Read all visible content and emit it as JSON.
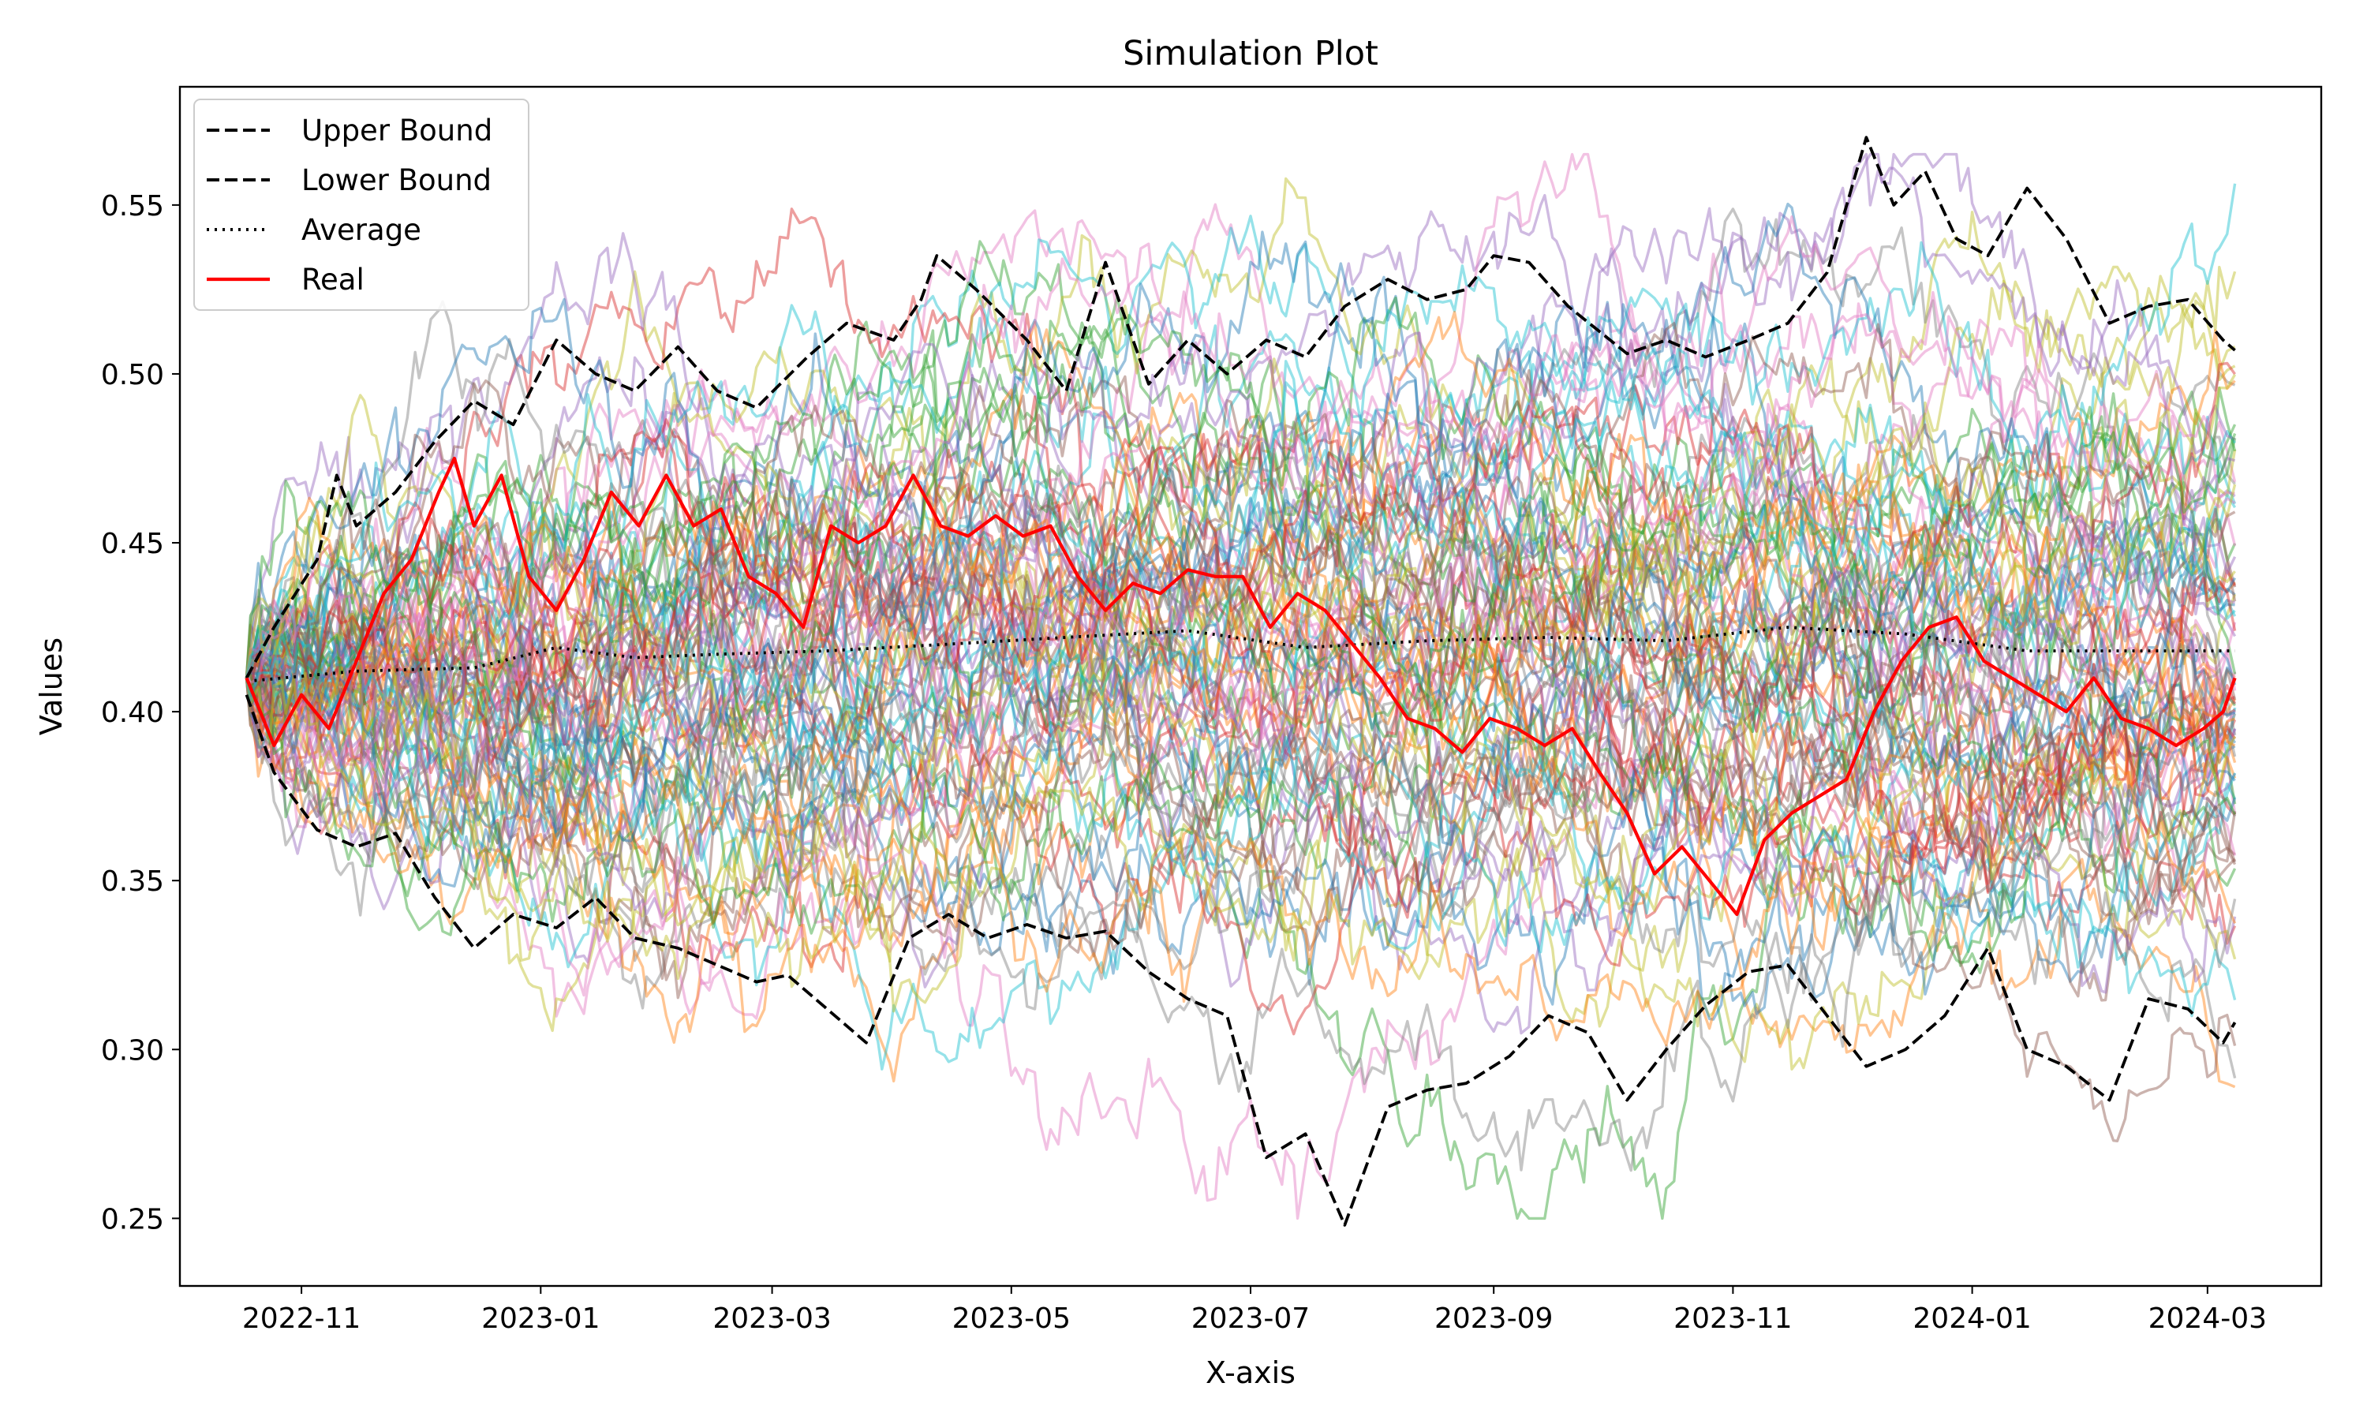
{
  "chart_data": {
    "type": "line",
    "title": "Simulation Plot",
    "xlabel": "X-axis",
    "ylabel": "Values",
    "x_range": [
      "2022-10-01",
      "2024-03-30"
    ],
    "ylim": [
      0.23,
      0.585
    ],
    "x_ticks": [
      "2022-11",
      "2023-01",
      "2023-03",
      "2023-05",
      "2023-07",
      "2023-09",
      "2023-11",
      "2024-01",
      "2024-03"
    ],
    "x_tick_dates": [
      "2022-11-01",
      "2023-01-01",
      "2023-03-01",
      "2023-05-01",
      "2023-07-01",
      "2023-09-01",
      "2023-11-01",
      "2024-01-01",
      "2024-03-01"
    ],
    "y_ticks": [
      "0.25",
      "0.30",
      "0.35",
      "0.40",
      "0.45",
      "0.50",
      "0.55"
    ],
    "y_tick_values": [
      0.25,
      0.3,
      0.35,
      0.4,
      0.45,
      0.5,
      0.55
    ],
    "grid": false,
    "legend_position": "top-left",
    "legend": [
      {
        "label": "Upper Bound",
        "color": "#000000",
        "style": "dashed"
      },
      {
        "label": "Lower Bound",
        "color": "#000000",
        "style": "dashed"
      },
      {
        "label": "Average",
        "color": "#000000",
        "style": "dotted"
      },
      {
        "label": "Real",
        "color": "#ff0000",
        "style": "solid"
      }
    ],
    "simulation_palette": [
      "#1f77b4",
      "#ff7f0e",
      "#2ca02c",
      "#d62728",
      "#9467bd",
      "#8c564b",
      "#e377c2",
      "#7f7f7f",
      "#bcbd22",
      "#17becf"
    ],
    "simulated_paths_count": 100,
    "series": [
      {
        "name": "Upper Bound",
        "color": "#000000",
        "style": "dashed",
        "points": [
          [
            "2022-10-18",
            0.41
          ],
          [
            "2022-10-25",
            0.425
          ],
          [
            "2022-11-05",
            0.445
          ],
          [
            "2022-11-10",
            0.47
          ],
          [
            "2022-11-15",
            0.455
          ],
          [
            "2022-11-25",
            0.465
          ],
          [
            "2022-12-05",
            0.48
          ],
          [
            "2022-12-15",
            0.492
          ],
          [
            "2022-12-25",
            0.485
          ],
          [
            "2023-01-05",
            0.51
          ],
          [
            "2023-01-15",
            0.5
          ],
          [
            "2023-01-25",
            0.495
          ],
          [
            "2023-02-05",
            0.508
          ],
          [
            "2023-02-15",
            0.495
          ],
          [
            "2023-02-25",
            0.49
          ],
          [
            "2023-03-10",
            0.505
          ],
          [
            "2023-03-20",
            0.515
          ],
          [
            "2023-04-01",
            0.51
          ],
          [
            "2023-04-08",
            0.522
          ],
          [
            "2023-04-12",
            0.535
          ],
          [
            "2023-04-22",
            0.525
          ],
          [
            "2023-05-05",
            0.51
          ],
          [
            "2023-05-15",
            0.495
          ],
          [
            "2023-05-25",
            0.533
          ],
          [
            "2023-06-05",
            0.497
          ],
          [
            "2023-06-15",
            0.51
          ],
          [
            "2023-06-25",
            0.5
          ],
          [
            "2023-07-05",
            0.51
          ],
          [
            "2023-07-15",
            0.505
          ],
          [
            "2023-07-25",
            0.52
          ],
          [
            "2023-08-05",
            0.528
          ],
          [
            "2023-08-15",
            0.522
          ],
          [
            "2023-08-25",
            0.525
          ],
          [
            "2023-09-01",
            0.535
          ],
          [
            "2023-09-10",
            0.533
          ],
          [
            "2023-09-20",
            0.52
          ],
          [
            "2023-10-05",
            0.506
          ],
          [
            "2023-10-15",
            0.51
          ],
          [
            "2023-10-25",
            0.505
          ],
          [
            "2023-11-05",
            0.51
          ],
          [
            "2023-11-15",
            0.515
          ],
          [
            "2023-11-25",
            0.53
          ],
          [
            "2023-12-05",
            0.57
          ],
          [
            "2023-12-12",
            0.55
          ],
          [
            "2023-12-20",
            0.56
          ],
          [
            "2023-12-28",
            0.54
          ],
          [
            "2024-01-05",
            0.535
          ],
          [
            "2024-01-15",
            0.555
          ],
          [
            "2024-01-25",
            0.54
          ],
          [
            "2024-02-05",
            0.515
          ],
          [
            "2024-02-15",
            0.52
          ],
          [
            "2024-02-25",
            0.522
          ],
          [
            "2024-03-05",
            0.51
          ],
          [
            "2024-03-08",
            0.507
          ]
        ]
      },
      {
        "name": "Lower Bound",
        "color": "#000000",
        "style": "dashed",
        "points": [
          [
            "2022-10-18",
            0.405
          ],
          [
            "2022-10-25",
            0.382
          ],
          [
            "2022-11-05",
            0.365
          ],
          [
            "2022-11-15",
            0.36
          ],
          [
            "2022-11-25",
            0.364
          ],
          [
            "2022-12-05",
            0.345
          ],
          [
            "2022-12-15",
            0.33
          ],
          [
            "2022-12-25",
            0.34
          ],
          [
            "2023-01-05",
            0.336
          ],
          [
            "2023-01-15",
            0.345
          ],
          [
            "2023-01-25",
            0.333
          ],
          [
            "2023-02-05",
            0.33
          ],
          [
            "2023-02-15",
            0.325
          ],
          [
            "2023-02-25",
            0.32
          ],
          [
            "2023-03-05",
            0.322
          ],
          [
            "2023-03-15",
            0.312
          ],
          [
            "2023-03-25",
            0.302
          ],
          [
            "2023-04-05",
            0.333
          ],
          [
            "2023-04-15",
            0.34
          ],
          [
            "2023-04-25",
            0.333
          ],
          [
            "2023-05-05",
            0.337
          ],
          [
            "2023-05-15",
            0.333
          ],
          [
            "2023-05-25",
            0.335
          ],
          [
            "2023-06-05",
            0.323
          ],
          [
            "2023-06-15",
            0.315
          ],
          [
            "2023-06-25",
            0.31
          ],
          [
            "2023-07-05",
            0.268
          ],
          [
            "2023-07-15",
            0.275
          ],
          [
            "2023-07-25",
            0.248
          ],
          [
            "2023-08-05",
            0.283
          ],
          [
            "2023-08-15",
            0.288
          ],
          [
            "2023-08-25",
            0.29
          ],
          [
            "2023-09-05",
            0.298
          ],
          [
            "2023-09-15",
            0.31
          ],
          [
            "2023-09-25",
            0.305
          ],
          [
            "2023-10-05",
            0.285
          ],
          [
            "2023-10-15",
            0.3
          ],
          [
            "2023-10-25",
            0.313
          ],
          [
            "2023-11-05",
            0.323
          ],
          [
            "2023-11-15",
            0.325
          ],
          [
            "2023-11-25",
            0.31
          ],
          [
            "2023-12-05",
            0.295
          ],
          [
            "2023-12-15",
            0.3
          ],
          [
            "2023-12-25",
            0.31
          ],
          [
            "2024-01-05",
            0.33
          ],
          [
            "2024-01-15",
            0.3
          ],
          [
            "2024-01-25",
            0.295
          ],
          [
            "2024-02-05",
            0.285
          ],
          [
            "2024-02-15",
            0.315
          ],
          [
            "2024-02-25",
            0.312
          ],
          [
            "2024-03-05",
            0.302
          ],
          [
            "2024-03-08",
            0.308
          ]
        ]
      },
      {
        "name": "Average",
        "color": "#000000",
        "style": "dotted",
        "points": [
          [
            "2022-10-18",
            0.409
          ],
          [
            "2022-11-15",
            0.412
          ],
          [
            "2022-12-15",
            0.413
          ],
          [
            "2023-01-05",
            0.419
          ],
          [
            "2023-01-25",
            0.416
          ],
          [
            "2023-02-15",
            0.417
          ],
          [
            "2023-03-15",
            0.418
          ],
          [
            "2023-04-15",
            0.42
          ],
          [
            "2023-05-15",
            0.422
          ],
          [
            "2023-06-15",
            0.424
          ],
          [
            "2023-07-15",
            0.419
          ],
          [
            "2023-08-15",
            0.421
          ],
          [
            "2023-09-15",
            0.422
          ],
          [
            "2023-10-15",
            0.421
          ],
          [
            "2023-11-15",
            0.425
          ],
          [
            "2023-12-15",
            0.423
          ],
          [
            "2024-01-15",
            0.418
          ],
          [
            "2024-02-15",
            0.418
          ],
          [
            "2024-03-08",
            0.418
          ]
        ]
      },
      {
        "name": "Real",
        "color": "#ff0000",
        "style": "solid",
        "points": [
          [
            "2022-10-18",
            0.41
          ],
          [
            "2022-10-25",
            0.39
          ],
          [
            "2022-11-01",
            0.405
          ],
          [
            "2022-11-08",
            0.395
          ],
          [
            "2022-11-15",
            0.415
          ],
          [
            "2022-11-22",
            0.435
          ],
          [
            "2022-11-29",
            0.445
          ],
          [
            "2022-12-06",
            0.465
          ],
          [
            "2022-12-10",
            0.475
          ],
          [
            "2022-12-15",
            0.455
          ],
          [
            "2022-12-22",
            0.47
          ],
          [
            "2022-12-29",
            0.44
          ],
          [
            "2023-01-05",
            0.43
          ],
          [
            "2023-01-12",
            0.445
          ],
          [
            "2023-01-19",
            0.465
          ],
          [
            "2023-01-26",
            0.455
          ],
          [
            "2023-02-02",
            0.47
          ],
          [
            "2023-02-09",
            0.455
          ],
          [
            "2023-02-16",
            0.46
          ],
          [
            "2023-02-23",
            0.44
          ],
          [
            "2023-03-02",
            0.435
          ],
          [
            "2023-03-09",
            0.425
          ],
          [
            "2023-03-16",
            0.455
          ],
          [
            "2023-03-23",
            0.45
          ],
          [
            "2023-03-30",
            0.455
          ],
          [
            "2023-04-06",
            0.47
          ],
          [
            "2023-04-13",
            0.455
          ],
          [
            "2023-04-20",
            0.452
          ],
          [
            "2023-04-27",
            0.458
          ],
          [
            "2023-05-04",
            0.452
          ],
          [
            "2023-05-11",
            0.455
          ],
          [
            "2023-05-18",
            0.44
          ],
          [
            "2023-05-25",
            0.43
          ],
          [
            "2023-06-01",
            0.438
          ],
          [
            "2023-06-08",
            0.435
          ],
          [
            "2023-06-15",
            0.442
          ],
          [
            "2023-06-22",
            0.44
          ],
          [
            "2023-06-29",
            0.44
          ],
          [
            "2023-07-06",
            0.425
          ],
          [
            "2023-07-13",
            0.435
          ],
          [
            "2023-07-20",
            0.43
          ],
          [
            "2023-07-27",
            0.42
          ],
          [
            "2023-08-03",
            0.41
          ],
          [
            "2023-08-10",
            0.398
          ],
          [
            "2023-08-17",
            0.395
          ],
          [
            "2023-08-24",
            0.388
          ],
          [
            "2023-08-31",
            0.398
          ],
          [
            "2023-09-07",
            0.395
          ],
          [
            "2023-09-14",
            0.39
          ],
          [
            "2023-09-21",
            0.395
          ],
          [
            "2023-09-28",
            0.382
          ],
          [
            "2023-10-05",
            0.37
          ],
          [
            "2023-10-12",
            0.352
          ],
          [
            "2023-10-19",
            0.36
          ],
          [
            "2023-10-26",
            0.35
          ],
          [
            "2023-11-02",
            0.34
          ],
          [
            "2023-11-09",
            0.362
          ],
          [
            "2023-11-16",
            0.37
          ],
          [
            "2023-11-23",
            0.375
          ],
          [
            "2023-11-30",
            0.38
          ],
          [
            "2023-12-07",
            0.4
          ],
          [
            "2023-12-14",
            0.415
          ],
          [
            "2023-12-21",
            0.425
          ],
          [
            "2023-12-28",
            0.428
          ],
          [
            "2024-01-04",
            0.415
          ],
          [
            "2024-01-11",
            0.41
          ],
          [
            "2024-01-18",
            0.405
          ],
          [
            "2024-01-25",
            0.4
          ],
          [
            "2024-02-01",
            0.41
          ],
          [
            "2024-02-08",
            0.398
          ],
          [
            "2024-02-15",
            0.395
          ],
          [
            "2024-02-22",
            0.39
          ],
          [
            "2024-02-29",
            0.395
          ],
          [
            "2024-03-05",
            0.4
          ],
          [
            "2024-03-08",
            0.41
          ]
        ]
      }
    ]
  }
}
